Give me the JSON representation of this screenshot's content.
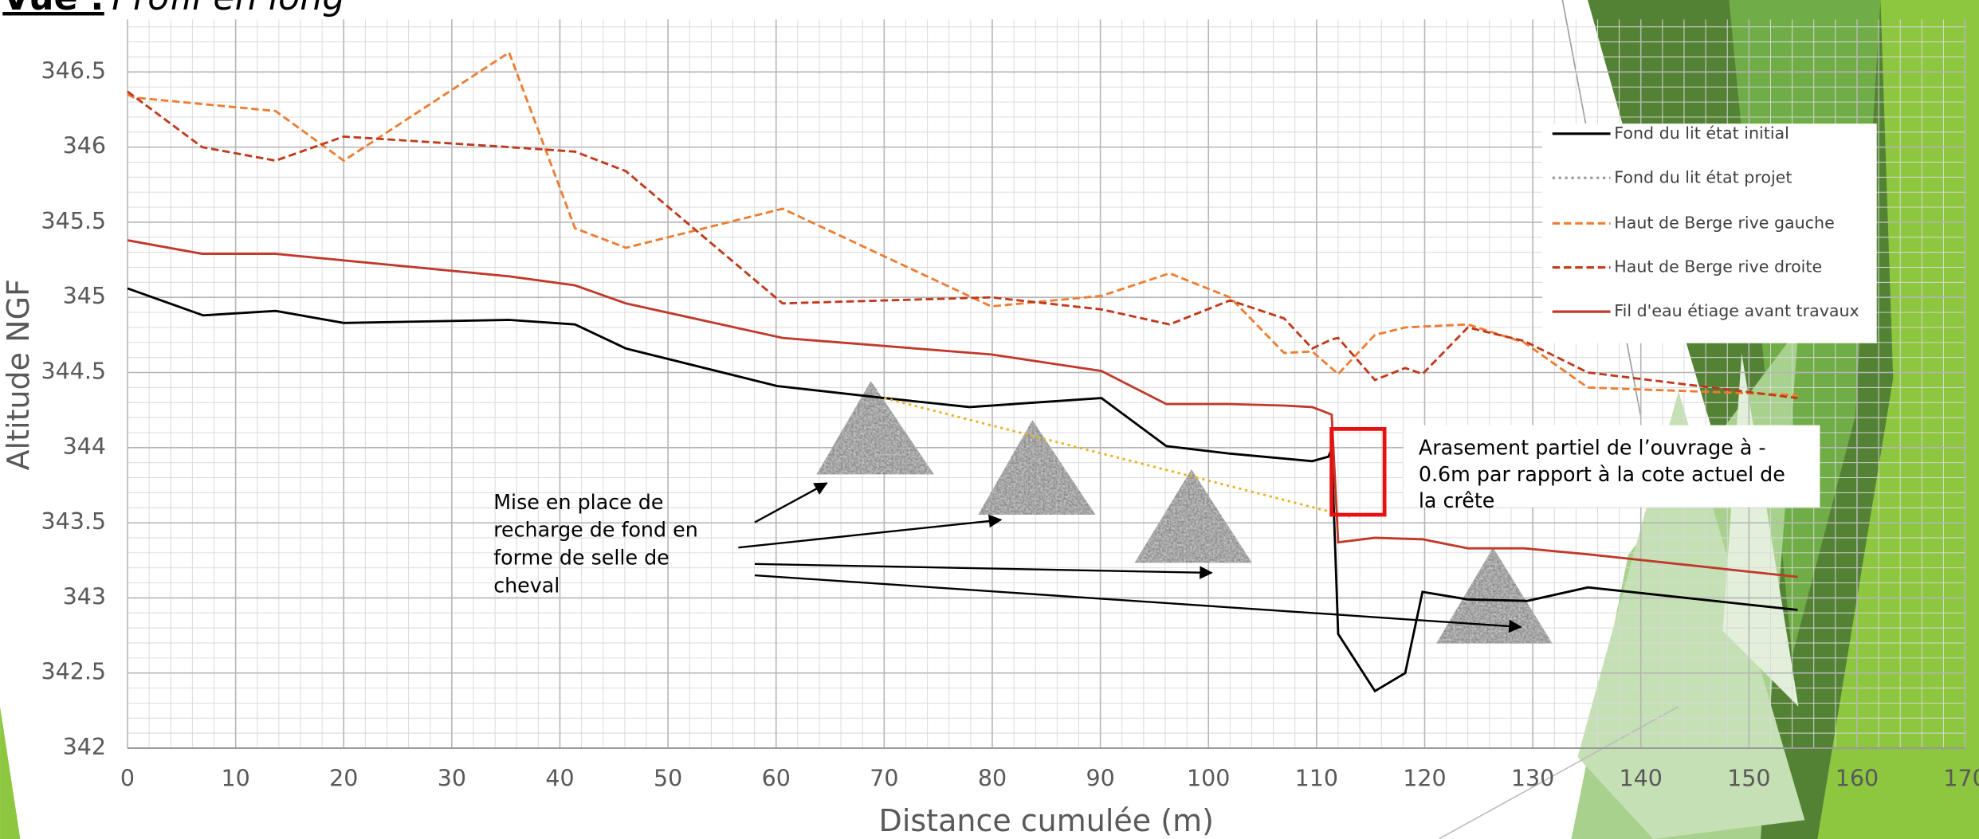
{
  "chart_data": {
    "type": "line",
    "title_label": "Vue :",
    "title": "Profil en long",
    "x_label": "Distance cumulée (m)",
    "y_label": "Altitude NGF",
    "xlim": [
      0,
      170
    ],
    "ylim": [
      342,
      346.85
    ],
    "xticks": [
      0,
      10,
      20,
      30,
      40,
      50,
      60,
      70,
      80,
      90,
      100,
      110,
      120,
      130,
      140,
      150,
      160,
      170
    ],
    "yticks": [
      342,
      342.5,
      343,
      343.5,
      344,
      344.5,
      345,
      345.5,
      346,
      346.5
    ],
    "grid": true,
    "minor_grid": true,
    "legend": "upper right",
    "series": [
      {
        "name": "Fond du lit état initial",
        "color": "#000000",
        "dash": "solid",
        "x": [
          0,
          7,
          13.7,
          20,
          35.3,
          41.4,
          46.1,
          60.1,
          70,
          77.9,
          90.1,
          96.1,
          102,
          109.6,
          111.1,
          111.4,
          112,
          115.4,
          118.2,
          119.8,
          124,
          129.5,
          135.1,
          154.5
        ],
        "values": [
          345.06,
          344.88,
          344.91,
          344.83,
          344.85,
          344.82,
          344.66,
          344.41,
          344.33,
          344.27,
          344.33,
          344.01,
          343.96,
          343.91,
          343.94,
          343.99,
          342.76,
          342.38,
          342.5,
          343.04,
          342.99,
          342.98,
          343.07,
          342.92
        ]
      },
      {
        "name": "Fond du lit état projet",
        "color": "#e6b422",
        "marker_color": "#999999",
        "dash": "dotted",
        "x": [
          70,
          113.1
        ],
        "values": [
          344.33,
          343.54
        ]
      },
      {
        "name": "Haut de Berge rive gauche",
        "color": "#ed7d31",
        "dash": "dashed",
        "x": [
          0,
          0.6,
          13.7,
          20,
          35.3,
          41.4,
          46.1,
          60.6,
          79.9,
          90.1,
          96.4,
          102,
          107,
          109.6,
          112,
          115.4,
          118.2,
          124,
          129.2,
          135.1,
          154.5
        ],
        "values": [
          346.35,
          346.33,
          346.24,
          345.91,
          346.63,
          345.46,
          345.33,
          345.59,
          344.94,
          345.01,
          345.16,
          345.0,
          344.63,
          344.64,
          344.49,
          344.75,
          344.8,
          344.82,
          344.7,
          344.4,
          344.35
        ]
      },
      {
        "name": "Haut de Berge rive droite",
        "color": "#c0391b",
        "dash": "dashed",
        "x": [
          0,
          6.9,
          13.7,
          20,
          35.3,
          41.4,
          46.1,
          60.6,
          79.9,
          90.1,
          96.4,
          102,
          107,
          109.6,
          111.4,
          112,
          115.4,
          118.2,
          119.8,
          124,
          129.2,
          135.1,
          154.5
        ],
        "values": [
          346.37,
          346.0,
          345.91,
          346.07,
          346.0,
          345.97,
          345.84,
          344.96,
          345.0,
          344.92,
          344.82,
          344.98,
          344.86,
          344.66,
          344.72,
          344.73,
          344.45,
          344.53,
          344.49,
          344.8,
          344.71,
          344.5,
          344.33
        ]
      },
      {
        "name": "Fil d'eau étiage avant travaux",
        "color": "#c0392b",
        "dash": "solid",
        "x": [
          0,
          6.9,
          13.7,
          35.3,
          41.4,
          46.1,
          60.6,
          79.9,
          90.1,
          96.1,
          102,
          107,
          109.6,
          111.4,
          112,
          115.4,
          119.8,
          124,
          129.2,
          135.1,
          154.5
        ],
        "values": [
          345.38,
          345.29,
          345.29,
          345.14,
          345.08,
          344.96,
          344.73,
          344.62,
          344.51,
          344.29,
          344.29,
          344.28,
          344.27,
          344.22,
          343.37,
          343.4,
          343.39,
          343.33,
          343.33,
          343.29,
          343.14
        ]
      }
    ],
    "annotations": [
      {
        "lines": [
          "Mise en place de",
          "recharge de fond en",
          "forme de selle de",
          "cheval"
        ]
      },
      {
        "lines": [
          "Arasement partiel de l’ouvrage à -",
          "0.6m par rapport à la cote actuel de",
          "la crête"
        ]
      }
    ]
  }
}
